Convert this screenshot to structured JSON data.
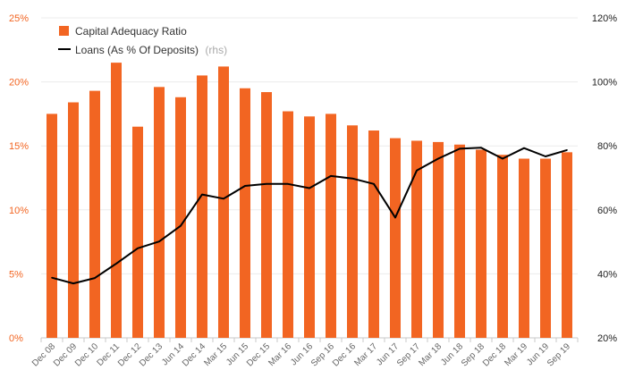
{
  "chart_data": {
    "type": "bar",
    "categories": [
      "Dec 08",
      "Dec 09",
      "Dec 10",
      "Dec 11",
      "Dec 12",
      "Dec 13",
      "Jun 14",
      "Dec 14",
      "Mar 15",
      "Jun 15",
      "Dec 15",
      "Mar 16",
      "Jun 16",
      "Sep 16",
      "Dec 16",
      "Mar 17",
      "Jun 17",
      "Sep 17",
      "Mar 18",
      "Jun 18",
      "Sep 18",
      "Dec 18",
      "Mar 19",
      "Jun 19",
      "Sep 19"
    ],
    "series": [
      {
        "name": "Capital Adequacy Ratio",
        "type": "bar",
        "axis": "left",
        "color": "#f26522",
        "values": [
          17.5,
          18.4,
          19.3,
          21.5,
          16.5,
          19.6,
          18.8,
          20.5,
          21.2,
          19.5,
          19.2,
          17.7,
          17.3,
          17.5,
          16.6,
          16.2,
          15.6,
          15.4,
          15.3,
          15.1,
          14.7,
          14.3,
          14.0,
          14.0,
          14.5
        ]
      },
      {
        "name": "Loans (As % Of Deposits)",
        "name_suffix": "(rhs)",
        "type": "line",
        "axis": "right",
        "color": "#000000",
        "values": [
          38.8,
          37.0,
          38.7,
          43.2,
          48.0,
          50.1,
          55.0,
          64.8,
          63.5,
          67.5,
          68.1,
          68.1,
          66.8,
          70.6,
          69.8,
          68.1,
          57.6,
          72.3,
          76.0,
          79.1,
          79.4,
          76.0,
          79.3,
          76.7,
          78.7
        ]
      }
    ],
    "y_left": {
      "ticks": [
        "0%",
        "5%",
        "10%",
        "15%",
        "20%",
        "25%"
      ],
      "ylim": [
        0,
        25
      ]
    },
    "y_right": {
      "ticks": [
        "20%",
        "40%",
        "60%",
        "80%",
        "100%",
        "120%"
      ],
      "ylim": [
        20,
        120
      ]
    },
    "grid": true,
    "legend": "top-left"
  }
}
